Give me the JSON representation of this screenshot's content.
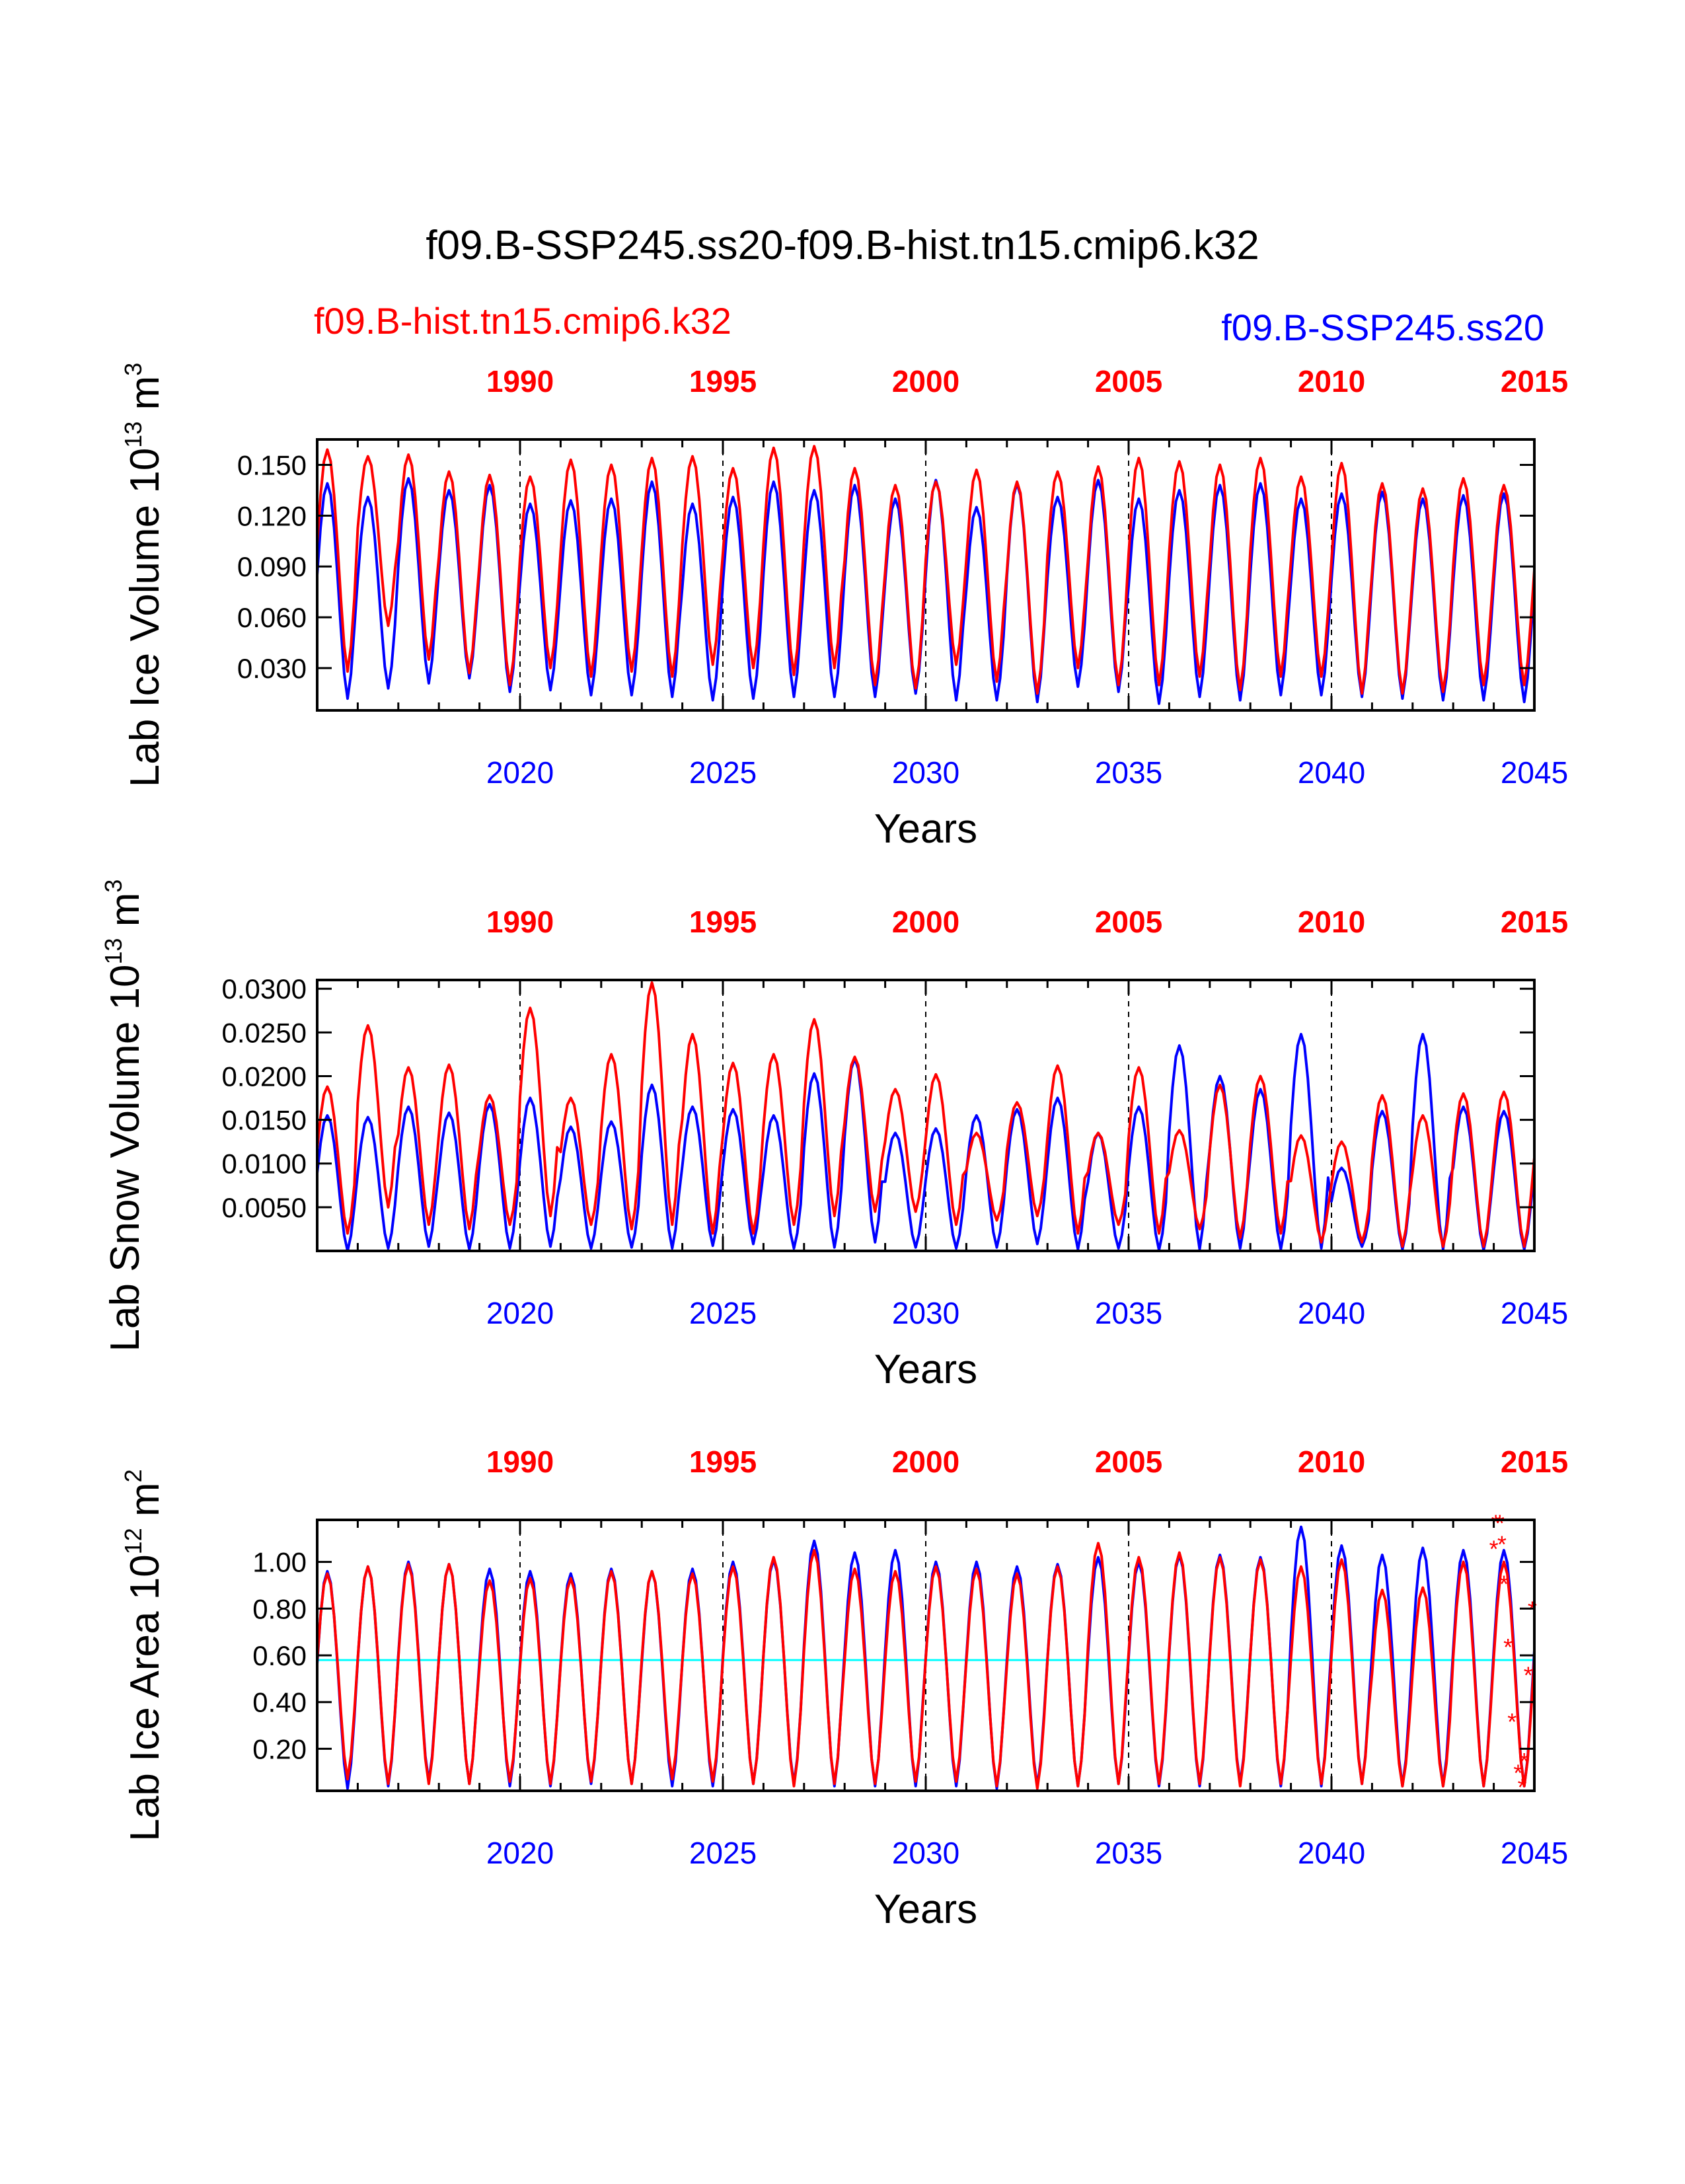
{
  "title": "f09.B-SSP245.ss20-f09.B-hist.tn15.cmip6.k32",
  "legend": {
    "hist_name": "f09.B-hist.tn15.cmip6.k32",
    "ssp_name": "f09.B-SSP245.ss20",
    "hist_color": "#ff0000",
    "ssp_color": "#0000ff"
  },
  "x_axis_label": "Years",
  "chart_data": [
    {
      "type": "line",
      "ylabel_prefix": "Lab Ice Volume 10",
      "ylabel_exp": "13",
      "ylabel_unit": " m",
      "ylabel_unit_exp": "3",
      "x_bottom_ticks": [
        "2020",
        "2025",
        "2030",
        "2035",
        "2040",
        "2045"
      ],
      "x_top_ticks": [
        "1990",
        "1995",
        "2000",
        "2005",
        "2010",
        "2015"
      ],
      "x_range_bottom": [
        2015,
        2045
      ],
      "x_range_top": [
        1985,
        2015
      ],
      "ylim": [
        0.005,
        0.165
      ],
      "y_ticks": [
        "0.030",
        "0.060",
        "0.090",
        "0.120",
        "0.150"
      ],
      "y_tick_values": [
        0.03,
        0.06,
        0.09,
        0.12,
        0.15
      ],
      "series": [
        {
          "name": "f09.B-SSP245.ss20",
          "color": "#0000ff",
          "seasonal_cycle": {
            "peaks": [
              0.139,
              0.131,
              0.142,
              0.135,
              0.138,
              0.127,
              0.129,
              0.13,
              0.14,
              0.127,
              0.131,
              0.14,
              0.135,
              0.138,
              0.13,
              0.141,
              0.125,
              0.139,
              0.131,
              0.141,
              0.13,
              0.135,
              0.138,
              0.139,
              0.13,
              0.133,
              0.134,
              0.13,
              0.132,
              0.133
            ],
            "troughs": [
              0.012,
              0.018,
              0.021,
              0.024,
              0.016,
              0.017,
              0.014,
              0.014,
              0.013,
              0.011,
              0.012,
              0.013,
              0.013,
              0.013,
              0.015,
              0.011,
              0.011,
              0.01,
              0.019,
              0.016,
              0.009,
              0.013,
              0.011,
              0.014,
              0.014,
              0.013,
              0.012,
              0.011,
              0.011,
              0.01
            ]
          }
        },
        {
          "name": "f09.B-hist.tn15.cmip6.k32",
          "color": "#ff0000",
          "seasonal_cycle": {
            "peaks": [
              0.159,
              0.155,
              0.156,
              0.146,
              0.144,
              0.143,
              0.153,
              0.15,
              0.154,
              0.155,
              0.148,
              0.16,
              0.161,
              0.148,
              0.138,
              0.14,
              0.147,
              0.14,
              0.146,
              0.149,
              0.154,
              0.152,
              0.15,
              0.154,
              0.143,
              0.151,
              0.139,
              0.136,
              0.142,
              0.138
            ],
            "troughs": [
              0.028,
              0.055,
              0.035,
              0.027,
              0.02,
              0.03,
              0.025,
              0.028,
              0.025,
              0.032,
              0.03,
              0.026,
              0.03,
              0.02,
              0.018,
              0.032,
              0.022,
              0.015,
              0.03,
              0.02,
              0.02,
              0.025,
              0.017,
              0.025,
              0.025,
              0.015,
              0.015,
              0.016,
              0.02,
              0.02
            ]
          }
        }
      ]
    },
    {
      "type": "line",
      "ylabel_prefix": "Lab Snow Volume 10",
      "ylabel_exp": "13",
      "ylabel_unit": " m",
      "ylabel_unit_exp": "3",
      "x_bottom_ticks": [
        "2020",
        "2025",
        "2030",
        "2035",
        "2040",
        "2045"
      ],
      "x_top_ticks": [
        "1990",
        "1995",
        "2000",
        "2005",
        "2010",
        "2015"
      ],
      "x_range_bottom": [
        2015,
        2045
      ],
      "x_range_top": [
        1985,
        2015
      ],
      "ylim": [
        0.0,
        0.031
      ],
      "y_ticks": [
        "0.0050",
        "0.0100",
        "0.0150",
        "0.0200",
        "0.0250",
        "0.0300"
      ],
      "y_tick_values": [
        0.005,
        0.01,
        0.015,
        0.02,
        0.025,
        0.03
      ],
      "series": [
        {
          "name": "f09.B-SSP245.ss20",
          "color": "#0000ff",
          "seasonal_cycle": {
            "peaks": [
              0.0155,
              0.0153,
              0.0165,
              0.0158,
              0.0168,
              0.0175,
              0.0142,
              0.0148,
              0.019,
              0.0165,
              0.0162,
              0.0155,
              0.0203,
              0.022,
              0.0135,
              0.014,
              0.0155,
              0.0162,
              0.0175,
              0.0135,
              0.0165,
              0.0235,
              0.02,
              0.0185,
              0.0248,
              0.0095,
              0.016,
              0.0248,
              0.0165,
              0.016
            ],
            "troughs": [
              0.0,
              0.0003,
              0.0005,
              0.0002,
              0.0003,
              0.0005,
              0.0003,
              0.0004,
              0.0003,
              0.0006,
              0.0008,
              0.0003,
              0.0004,
              0.001,
              0.0004,
              0.0003,
              0.0004,
              0.0008,
              0.0002,
              0.0003,
              0.0001,
              0.0002,
              0.0003,
              0.0002,
              0.0003,
              0.0005,
              0.0002,
              0.0002,
              0.0001,
              0.0002
            ]
          }
        },
        {
          "name": "f09.B-hist.tn15.cmip6.k32",
          "color": "#ff0000",
          "seasonal_cycle": {
            "peaks": [
              0.0188,
              0.0258,
              0.021,
              0.0213,
              0.0178,
              0.0278,
              0.0175,
              0.0225,
              0.0307,
              0.0248,
              0.0215,
              0.0225,
              0.0265,
              0.0222,
              0.0185,
              0.0202,
              0.0135,
              0.017,
              0.0212,
              0.0135,
              0.021,
              0.0138,
              0.019,
              0.02,
              0.0132,
              0.0125,
              0.0178,
              0.0155,
              0.018,
              0.0182
            ],
            "troughs": [
              0.002,
              0.005,
              0.003,
              0.0025,
              0.003,
              0.004,
              0.003,
              0.0025,
              0.003,
              0.002,
              0.002,
              0.003,
              0.004,
              0.0045,
              0.0045,
              0.003,
              0.0035,
              0.004,
              0.002,
              0.003,
              0.002,
              0.0025,
              0.0015,
              0.002,
              0.001,
              0.001,
              0.0005,
              0.0005,
              0.0005,
              0.0005
            ]
          }
        }
      ]
    },
    {
      "type": "line",
      "ylabel_prefix": "Lab Ice Area 10",
      "ylabel_exp": "12",
      "ylabel_unit": " m",
      "ylabel_unit_exp": "2",
      "x_bottom_ticks": [
        "2020",
        "2025",
        "2030",
        "2035",
        "2040",
        "2045"
      ],
      "x_top_ticks": [
        "1990",
        "1995",
        "2000",
        "2005",
        "2010",
        "2015"
      ],
      "x_range_bottom": [
        2015,
        2045
      ],
      "x_range_top": [
        1985,
        2015
      ],
      "ylim": [
        0.02,
        1.18
      ],
      "y_ticks": [
        "0.20",
        "0.40",
        "0.60",
        "0.80",
        "1.00"
      ],
      "y_tick_values": [
        0.2,
        0.4,
        0.6,
        0.8,
        1.0
      ],
      "reference_line": {
        "value": 0.58,
        "color": "#00ffff"
      },
      "markers_red": [
        {
          "x": 2044.05,
          "y": 1.17
        },
        {
          "x": 2044.15,
          "y": 1.17
        },
        {
          "x": 2044.0,
          "y": 1.06
        },
        {
          "x": 2044.2,
          "y": 1.08
        },
        {
          "x": 2044.25,
          "y": 0.91
        },
        {
          "x": 2044.35,
          "y": 0.64
        },
        {
          "x": 2044.45,
          "y": 0.32
        },
        {
          "x": 2044.6,
          "y": 0.1
        },
        {
          "x": 2044.7,
          "y": 0.04
        },
        {
          "x": 2044.75,
          "y": 0.15
        },
        {
          "x": 2044.85,
          "y": 0.52
        },
        {
          "x": 2044.95,
          "y": 0.8
        }
      ],
      "series": [
        {
          "name": "f09.B-SSP245.ss20",
          "color": "#0000ff",
          "seasonal_cycle": {
            "peaks": [
              0.96,
              0.98,
              1.0,
              0.99,
              0.97,
              0.96,
              0.95,
              0.97,
              0.96,
              0.97,
              1.0,
              1.01,
              1.09,
              1.04,
              1.05,
              1.0,
              1.0,
              0.98,
              0.99,
              1.02,
              1.0,
              1.03,
              1.03,
              1.02,
              1.15,
              1.07,
              1.03,
              1.06,
              1.05,
              1.05
            ],
            "troughs": [
              0.03,
              0.04,
              0.06,
              0.05,
              0.04,
              0.04,
              0.05,
              0.05,
              0.04,
              0.04,
              0.05,
              0.05,
              0.04,
              0.04,
              0.04,
              0.04,
              0.03,
              0.04,
              0.04,
              0.05,
              0.04,
              0.04,
              0.05,
              0.04,
              0.04,
              0.05,
              0.04,
              0.04,
              0.04,
              0.04
            ]
          }
        },
        {
          "name": "f09.B-hist.tn15.cmip6.k32",
          "color": "#ff0000",
          "seasonal_cycle": {
            "peaks": [
              0.95,
              0.98,
              0.99,
              0.99,
              0.92,
              0.93,
              0.93,
              0.96,
              0.96,
              0.95,
              0.98,
              1.02,
              1.05,
              0.97,
              0.96,
              0.98,
              0.97,
              0.95,
              0.98,
              1.08,
              1.02,
              1.04,
              1.02,
              1.01,
              0.98,
              1.01,
              0.88,
              0.89,
              1.0,
              1.0
            ],
            "troughs": [
              0.07,
              0.05,
              0.05,
              0.05,
              0.06,
              0.05,
              0.06,
              0.05,
              0.07,
              0.06,
              0.05,
              0.04,
              0.05,
              0.05,
              0.06,
              0.06,
              0.04,
              0.03,
              0.04,
              0.05,
              0.05,
              0.05,
              0.04,
              0.05,
              0.05,
              0.05,
              0.04,
              0.04,
              0.04,
              0.04
            ]
          }
        }
      ]
    }
  ]
}
